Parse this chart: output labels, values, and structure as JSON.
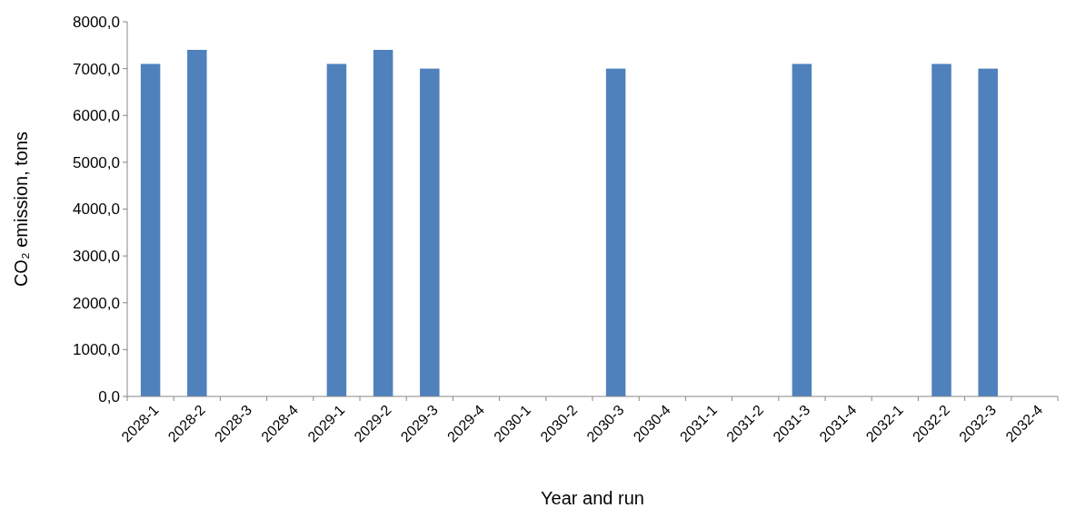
{
  "chart_data": {
    "type": "bar",
    "xlabel": "Year and run",
    "ylabel": "CO₂ emission, tons",
    "categories": [
      "2028-1",
      "2028-2",
      "2028-3",
      "2028-4",
      "2029-1",
      "2029-2",
      "2029-3",
      "2029-4",
      "2030-1",
      "2030-2",
      "2030-3",
      "2030-4",
      "2031-1",
      "2031-2",
      "2031-3",
      "2031-4",
      "2032-1",
      "2032-2",
      "2032-3",
      "2032-4"
    ],
    "values": [
      7100,
      7400,
      0,
      0,
      7100,
      7400,
      7000,
      0,
      0,
      0,
      7000,
      0,
      0,
      0,
      7100,
      0,
      0,
      7100,
      7000,
      0
    ],
    "color": "#4f81bd",
    "ylim": [
      0,
      8000
    ],
    "yticks": [
      {
        "value": 0,
        "label": "0,0"
      },
      {
        "value": 1000,
        "label": "1000,0"
      },
      {
        "value": 2000,
        "label": "2000,0"
      },
      {
        "value": 3000,
        "label": "3000,0"
      },
      {
        "value": 4000,
        "label": "4000,0"
      },
      {
        "value": 5000,
        "label": "5000,0"
      },
      {
        "value": 6000,
        "label": "6000,0"
      },
      {
        "value": 7000,
        "label": "7000,0"
      },
      {
        "value": 8000,
        "label": "8000,0"
      }
    ],
    "grid": false
  }
}
